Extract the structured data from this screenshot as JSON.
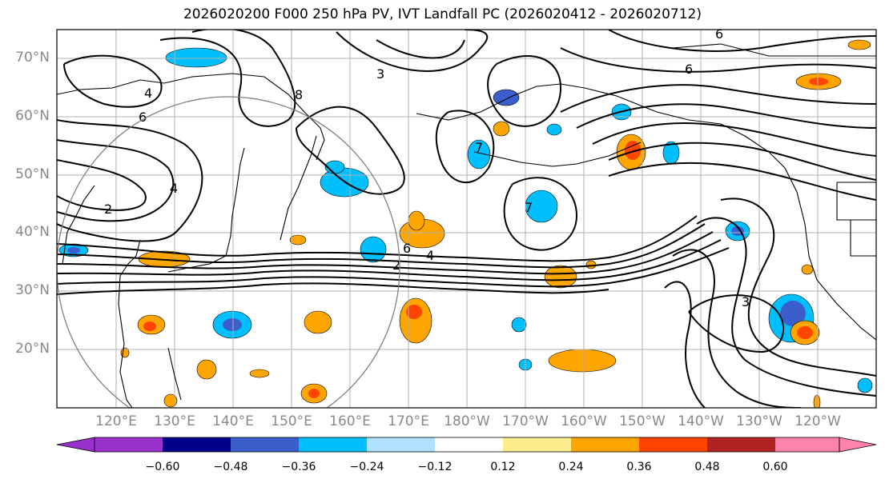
{
  "title": "2026020200 F000 250 hPa PV, IVT Landfall PC (2026020412 - 2026020712)",
  "lat_labels": [
    "70°N",
    "60°N",
    "50°N",
    "40°N",
    "30°N",
    "20°N"
  ],
  "lon_labels": [
    "120°E",
    "130°E",
    "140°E",
    "150°E",
    "160°E",
    "170°E",
    "180°W",
    "170°W",
    "160°W",
    "150°W",
    "140°W",
    "130°W",
    "120°W"
  ],
  "contour_labels": [
    "4",
    "3",
    "6",
    "8",
    "6",
    "6",
    "4",
    "2",
    "6",
    "4",
    "2",
    "7",
    "7",
    "3"
  ],
  "colorbar": {
    "ticks": [
      "−0.60",
      "−0.48",
      "−0.36",
      "−0.24",
      "−0.12",
      "0.12",
      "0.24",
      "0.36",
      "0.48",
      "0.60"
    ],
    "colors": [
      "#9932cc",
      "#00008b",
      "#3a5fcd",
      "#00bfff",
      "#b0e2ff",
      "#ffffff",
      "#ffec8b",
      "#ffa500",
      "#ff4500",
      "#b22222",
      "#ff82ab"
    ]
  }
}
